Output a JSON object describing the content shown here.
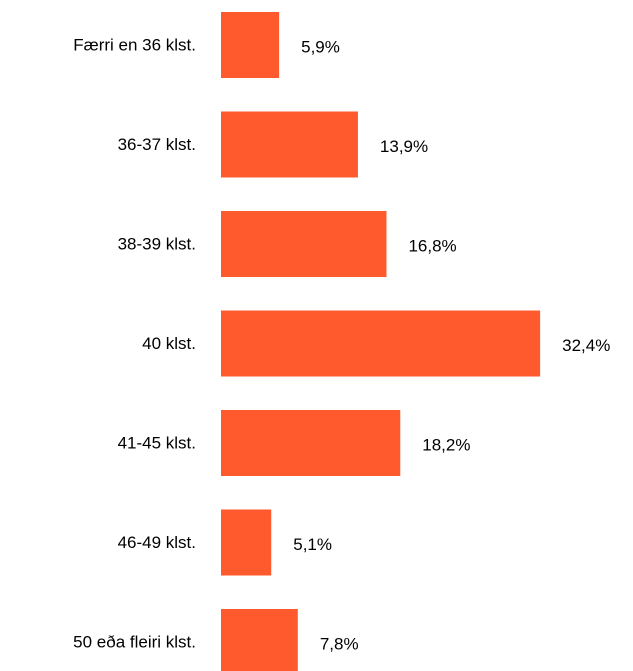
{
  "chart_data": {
    "type": "bar",
    "orientation": "horizontal",
    "categories": [
      "Færri en 36 klst.",
      "36-37 klst.",
      "38-39 klst.",
      "40 klst.",
      "41-45 klst.",
      "46-49 klst.",
      "50 eða fleiri klst."
    ],
    "values": [
      5.9,
      13.9,
      16.8,
      32.4,
      18.2,
      5.1,
      7.8
    ],
    "value_labels": [
      "5,9%",
      "13,9%",
      "16,8%",
      "32,4%",
      "18,2%",
      "5,1%",
      "7,8%"
    ],
    "unit": "%",
    "bar_color": "#ff5a2d",
    "grid": false,
    "legend": "none"
  }
}
